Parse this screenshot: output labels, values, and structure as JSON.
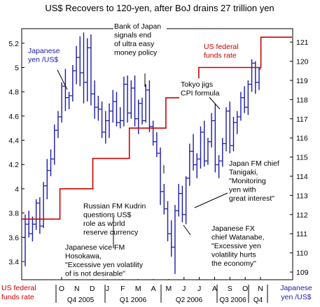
{
  "chart_data": {
    "type": "ohlc-line",
    "title": "US$ Recovers to 120-yen, after BoJ drains 27 trillion yen",
    "left_axis": {
      "min": 3.25,
      "max": 5.32,
      "ticks": [
        "3.4",
        "3.6",
        "3.8",
        "4",
        "4.2",
        "4.4",
        "4.6",
        "4.8",
        "5",
        "5.2"
      ]
    },
    "right_axis": {
      "min": 108.6,
      "max": 121.7,
      "ticks": [
        "109",
        "110",
        "111",
        "112",
        "113",
        "114",
        "115",
        "116",
        "117",
        "118",
        "119",
        "120",
        "121"
      ]
    },
    "months": [
      "O",
      "N",
      "D",
      "J",
      "F",
      "M",
      "A",
      "M",
      "J",
      "J",
      "A",
      "S",
      "O",
      "N"
    ],
    "quarters": [
      "Q4 2005",
      "Q1 2006",
      "Q2 2006",
      "Q3 2006",
      "Q4"
    ],
    "colors": {
      "bars": "#1a1aa8",
      "funds_rate": "#cc0000",
      "axis": "#000000"
    },
    "series": [
      {
        "name": "Japanese yen /US$",
        "axis": "right",
        "type": "ohlc",
        "bars": [
          [
            110.8,
            112.0,
            109.3,
            111.5
          ],
          [
            111.5,
            112.2,
            110.8,
            111.0
          ],
          [
            111.0,
            111.9,
            110.6,
            111.5
          ],
          [
            111.5,
            112.8,
            111.2,
            112.6
          ],
          [
            112.6,
            112.9,
            111.0,
            111.4
          ],
          [
            111.4,
            113.7,
            111.3,
            113.5
          ],
          [
            113.5,
            114.9,
            112.8,
            114.3
          ],
          [
            114.3,
            115.4,
            114.0,
            114.9
          ],
          [
            114.9,
            116.7,
            114.6,
            116.4
          ],
          [
            116.4,
            117.4,
            116.0,
            117.1
          ],
          [
            117.1,
            118.9,
            116.8,
            118.7
          ],
          [
            118.7,
            119.6,
            117.4,
            118.1
          ],
          [
            118.1,
            118.4,
            117.5,
            118.2
          ],
          [
            118.2,
            119.8,
            117.9,
            119.5
          ],
          [
            119.5,
            120.8,
            118.8,
            120.2
          ],
          [
            120.2,
            121.3,
            118.7,
            119.4
          ],
          [
            119.4,
            121.5,
            117.8,
            118.9
          ],
          [
            118.9,
            121.2,
            117.9,
            120.7
          ],
          [
            120.7,
            121.4,
            117.7,
            118.3
          ],
          [
            118.3,
            119.0,
            117.0,
            117.6
          ],
          [
            117.6,
            118.2,
            116.9,
            117.5
          ],
          [
            117.5,
            117.9,
            116.0,
            116.3
          ],
          [
            116.3,
            117.4,
            115.7,
            116.9
          ],
          [
            116.9,
            117.8,
            116.0,
            117.4
          ],
          [
            117.4,
            118.5,
            116.8,
            117.9
          ],
          [
            117.9,
            118.4,
            116.6,
            116.8
          ],
          [
            116.8,
            117.6,
            116.5,
            116.9
          ],
          [
            116.9,
            119.2,
            116.6,
            118.8
          ],
          [
            118.8,
            119.4,
            116.8,
            117.3
          ],
          [
            117.3,
            119.0,
            117.0,
            118.6
          ],
          [
            118.6,
            119.3,
            116.6,
            117.0
          ],
          [
            117.0,
            118.0,
            116.2,
            117.8
          ],
          [
            117.8,
            118.1,
            116.7,
            116.9
          ],
          [
            116.9,
            118.8,
            116.8,
            118.5
          ],
          [
            118.5,
            119.0,
            116.3,
            116.6
          ],
          [
            116.6,
            116.9,
            115.6,
            115.8
          ],
          [
            115.8,
            116.3,
            115.0,
            115.2
          ],
          [
            115.2,
            115.5,
            112.5,
            113.2
          ],
          [
            113.2,
            113.6,
            112.0,
            112.3
          ],
          [
            112.3,
            112.7,
            110.6,
            111.0
          ],
          [
            111.0,
            111.7,
            109.8,
            110.3
          ],
          [
            110.3,
            112.5,
            108.9,
            112.2
          ],
          [
            112.2,
            113.6,
            111.9,
            113.1
          ],
          [
            113.1,
            113.5,
            111.6,
            112.0
          ],
          [
            112.0,
            114.0,
            111.5,
            113.9
          ],
          [
            113.9,
            115.7,
            113.5,
            115.3
          ],
          [
            115.3,
            116.2,
            114.3,
            114.6
          ],
          [
            114.6,
            115.2,
            113.9,
            114.9
          ],
          [
            114.9,
            116.6,
            114.4,
            116.3
          ],
          [
            116.3,
            116.9,
            114.5,
            114.8
          ],
          [
            114.8,
            116.0,
            114.6,
            115.8
          ],
          [
            115.8,
            117.3,
            115.5,
            116.9
          ],
          [
            116.9,
            117.8,
            114.2,
            114.6
          ],
          [
            114.6,
            115.1,
            113.9,
            114.8
          ],
          [
            114.8,
            116.0,
            114.5,
            115.7
          ],
          [
            115.7,
            117.6,
            115.3,
            117.4
          ],
          [
            117.4,
            117.9,
            115.2,
            115.6
          ],
          [
            115.6,
            117.1,
            115.3,
            116.8
          ],
          [
            116.8,
            117.4,
            116.2,
            117.1
          ],
          [
            117.1,
            118.4,
            116.9,
            118.1
          ],
          [
            118.1,
            118.7,
            117.3,
            117.6
          ],
          [
            117.6,
            119.0,
            117.2,
            118.8
          ],
          [
            118.8,
            120.1,
            118.4,
            119.9
          ],
          [
            119.9,
            120.0,
            118.3,
            118.9
          ],
          [
            118.9,
            119.7,
            118.5,
            119.6
          ]
        ]
      },
      {
        "name": "US federal funds rate",
        "axis": "left",
        "type": "step-line",
        "points": [
          {
            "x": 0,
            "y": 3.75
          },
          {
            "x": 9.5,
            "y": 4.0
          },
          {
            "x": 18.5,
            "y": 4.25
          },
          {
            "x": 28.5,
            "y": 4.5
          },
          {
            "x": 38.5,
            "y": 4.75
          },
          {
            "x": 47.5,
            "y": 5.0
          },
          {
            "x": 64.5,
            "y": 5.25
          }
        ],
        "plotted_as_label_level": true
      }
    ],
    "annotations": {
      "yen": [
        "Japanese",
        "yen /US$"
      ],
      "boj": [
        "Bank of Japan",
        "signals end",
        "of ultra easy",
        "money policy"
      ],
      "fedtop": [
        "US federal",
        "funds rate"
      ],
      "tokyo": [
        "Tokyo jigs",
        "CPI formula"
      ],
      "tanigaki": [
        "Japan FM chief",
        "Tanigaki,",
        "\"Monitoring",
        "yen with",
        "great interest\""
      ],
      "kudrin": [
        "Russian FM Kudrin",
        "questions US$",
        "role as world",
        "reserve currency"
      ],
      "hosokawa": [
        "Japanese vice FM",
        "Hosokawa,",
        "\"Excessive yen volatility",
        "of is not desirable\""
      ],
      "watanabe": [
        "Japanese FX",
        "chief Watanabe,",
        "\"Excessive yen",
        "volatility hurts",
        "the economy\""
      ],
      "fedbottom": [
        "US federal",
        "funds rate"
      ],
      "yenbottom": [
        "Japanese",
        "yen /US$"
      ]
    }
  }
}
